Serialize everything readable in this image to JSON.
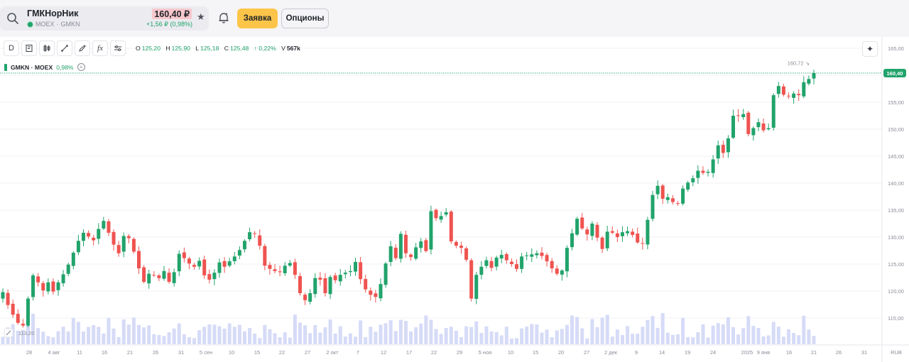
{
  "header": {
    "ticker_name": "ГМКНорНик",
    "exchange": "MOEX",
    "ticker_code": "GMKN",
    "price": "160,40 ₽",
    "change": "+1,56 ₽ (0,98%)",
    "order_button": "Заявка",
    "options_button": "Опционы"
  },
  "toolbar": {
    "interval_label": "D",
    "fx_label": "fx",
    "ohlc": {
      "o_label": "O",
      "o": "125,20",
      "h_label": "H",
      "h": "125,90",
      "l_label": "L",
      "l": "125,18",
      "c_label": "C",
      "c": "125,48",
      "change": "↑ 0,22%",
      "v_label": "V",
      "v": "567k"
    }
  },
  "legend": {
    "symbol": "GMKN · MOEX",
    "change": "0,98%"
  },
  "colors": {
    "up": "#21a36b",
    "down": "#ef5350",
    "volume": "#d6dbf7",
    "accent": "#fcc54a"
  },
  "chart_data": {
    "type": "candlestick",
    "y_ticks": [
      "165,00",
      "160,00",
      "155,00",
      "150,00",
      "145,00",
      "140,00",
      "135,00",
      "130,00",
      "125,00",
      "120,00",
      "115,00"
    ],
    "ylim": [
      113,
      166
    ],
    "current_price_label": "160,40",
    "max_label": "160,72",
    "min_label": "113,20",
    "x_ticks": [
      "28",
      "4 авг",
      "11",
      "16",
      "21",
      "26",
      "31",
      "5 сен",
      "10",
      "15",
      "22",
      "27",
      "2 окт",
      "7",
      "12",
      "17",
      "22",
      "29",
      "5 ноя",
      "10",
      "15",
      "20",
      "27",
      "2 дек",
      "9",
      "14",
      "19",
      "24",
      "2025",
      "9 янв",
      "16",
      "21",
      "26",
      "31"
    ],
    "currency_label": "RUB",
    "close": [
      119.8,
      117.4,
      115.6,
      114.1,
      113.6,
      118.6,
      122.9,
      121.6,
      120.1,
      121.6,
      119.9,
      121.6,
      123.1,
      124.9,
      127.1,
      129.3,
      130.8,
      130.1,
      129.4,
      131.5,
      133.0,
      130.8,
      128.6,
      127.0,
      130.2,
      129.8,
      127.3,
      124.2,
      121.7,
      123.2,
      122.9,
      122.4,
      123.7,
      121.7,
      123.5,
      126.9,
      126.1,
      125.1,
      124.5,
      125.6,
      122.9,
      122.1,
      123.4,
      125.3,
      124.5,
      125.5,
      126.4,
      127.6,
      129.3,
      130.9,
      130.6,
      128.4,
      124.7,
      124.1,
      123.7,
      123.5,
      124.7,
      125.2,
      123.0,
      119.6,
      118.3,
      119.6,
      122.4,
      122.1,
      119.6,
      122.6,
      122.0,
      123.0,
      123.4,
      123.7,
      125.4,
      122.2,
      120.3,
      119.3,
      118.9,
      121.3,
      125.1,
      128.3,
      126.1,
      130.6,
      127.0,
      126.3,
      128.1,
      129.2,
      127.4,
      134.8,
      133.5,
      133.9,
      134.6,
      129.2,
      128.4,
      128.0,
      125.8,
      118.6,
      123.0,
      124.5,
      125.7,
      124.3,
      126.2,
      126.7,
      125.7,
      125.0,
      124.1,
      126.4,
      126.6,
      126.8,
      127.0,
      126.5,
      125.5,
      124.2,
      123.2,
      123.8,
      128.0,
      130.7,
      133.4,
      131.6,
      130.5,
      132.5,
      129.9,
      127.8,
      131.0,
      130.8,
      130.0,
      130.9,
      131.1,
      130.4,
      129.0,
      128.8,
      133.2,
      137.8,
      139.5,
      137.1,
      137.4,
      136.5,
      136.2,
      139.0,
      140.1,
      140.9,
      142.3,
      141.9,
      142.1,
      144.4,
      147.0,
      145.6,
      148.3,
      152.5,
      152.5,
      152.8,
      149.1,
      150.2,
      151.3,
      149.8,
      150.2,
      156.3,
      158.0,
      156.4,
      156.1,
      156.6,
      156.3,
      158.7,
      159.3,
      160.4
    ],
    "series": [
      {
        "name": "GMKN · MOEX"
      }
    ]
  }
}
